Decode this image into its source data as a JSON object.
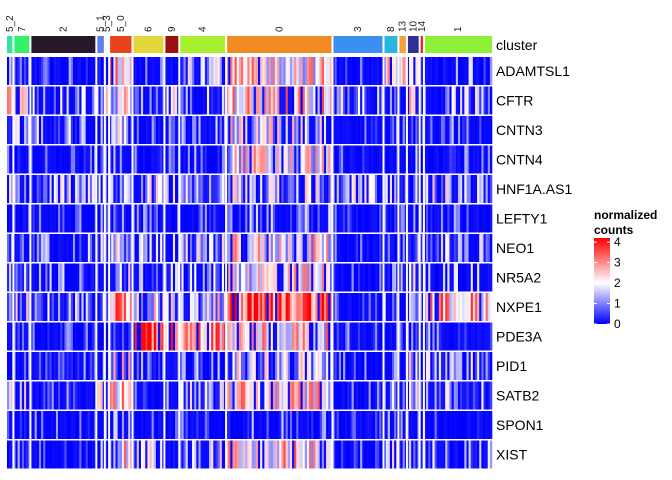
{
  "chart_data": {
    "type": "heatmap",
    "annotation_label": "cluster",
    "clusters": [
      {
        "name": "5_2",
        "color": "#2ee3a5",
        "cells": 3
      },
      {
        "name": "7",
        "color": "#34f06a",
        "cells": 8
      },
      {
        "name": "2",
        "color": "#27172a",
        "cells": 31
      },
      {
        "name": "5_1",
        "color": "#5b7ef5",
        "cells": 4
      },
      {
        "name": "5_3",
        "color": "#ffffff",
        "cells": 2
      },
      {
        "name": "5_0",
        "color": "#e8431c",
        "cells": 11
      },
      {
        "name": "6",
        "color": "#e3d63a",
        "cells": 15
      },
      {
        "name": "9",
        "color": "#9b0f12",
        "cells": 7
      },
      {
        "name": "4",
        "color": "#a8f02e",
        "cells": 22
      },
      {
        "name": "0",
        "color": "#f28a22",
        "cells": 50
      },
      {
        "name": "3",
        "color": "#3a8ff0",
        "cells": 24
      },
      {
        "name": "8",
        "color": "#29b6e0",
        "cells": 7
      },
      {
        "name": "13",
        "color": "#f2a23c",
        "cells": 4
      },
      {
        "name": "10",
        "color": "#2f2f95",
        "cells": 6
      },
      {
        "name": "14",
        "color": "#ef1f20",
        "cells": 2
      },
      {
        "name": "1",
        "color": "#8ff03a",
        "cells": 32
      }
    ],
    "genes": [
      "ADAMTSL1",
      "CFTR",
      "CNTN3",
      "CNTN4",
      "HNF1A.AS1",
      "LEFTY1",
      "NEO1",
      "NR5A2",
      "NXPE1",
      "PDE3A",
      "PID1",
      "SATB2",
      "SPON1",
      "XIST"
    ],
    "mean_expression": [
      [
        0.3,
        0.6,
        0.2,
        0.4,
        0.8,
        2.6,
        0.3,
        0.1,
        1.2,
        2.2,
        0.4,
        2.0,
        1.8,
        1.4,
        0.5,
        0.6
      ],
      [
        2.2,
        1.8,
        1.0,
        1.8,
        1.6,
        2.0,
        0.7,
        1.5,
        0.8,
        2.4,
        1.3,
        0.8,
        0.6,
        2.0,
        1.0,
        1.1
      ],
      [
        1.0,
        1.0,
        0.9,
        0.4,
        0.5,
        1.4,
        0.2,
        0.1,
        0.4,
        1.7,
        0.0,
        0.8,
        0.2,
        1.0,
        0.2,
        0.3
      ],
      [
        0.3,
        0.5,
        0.1,
        0.2,
        0.0,
        0.7,
        0.3,
        0.1,
        0.3,
        2.0,
        0.0,
        0.2,
        0.2,
        0.5,
        0.1,
        0.3
      ],
      [
        1.2,
        1.4,
        1.1,
        1.3,
        1.2,
        1.0,
        1.4,
        1.2,
        1.2,
        1.4,
        1.3,
        1.6,
        1.4,
        1.0,
        0.8,
        1.3
      ],
      [
        0.1,
        0.2,
        0.1,
        0.4,
        0.1,
        0.6,
        0.3,
        0.1,
        0.2,
        0.5,
        0.0,
        0.2,
        0.1,
        0.3,
        0.1,
        0.2
      ],
      [
        0.9,
        0.6,
        0.7,
        1.5,
        1.2,
        1.6,
        1.2,
        0.8,
        1.3,
        2.0,
        0.0,
        0.5,
        0.4,
        1.2,
        0.8,
        1.4
      ],
      [
        0.8,
        0.7,
        0.8,
        1.6,
        1.0,
        1.5,
        0.8,
        0.6,
        0.9,
        2.0,
        0.1,
        0.7,
        0.5,
        1.1,
        0.6,
        0.7
      ],
      [
        1.5,
        1.3,
        1.0,
        1.2,
        1.4,
        3.0,
        1.6,
        1.8,
        1.7,
        3.5,
        0.1,
        0.9,
        0.5,
        1.6,
        1.0,
        2.6
      ],
      [
        0.4,
        0.3,
        0.1,
        0.3,
        0.1,
        1.1,
        3.6,
        2.9,
        2.8,
        2.3,
        0.1,
        0.9,
        0.4,
        0.8,
        0.4,
        0.7
      ],
      [
        0.6,
        0.4,
        0.5,
        0.6,
        0.5,
        1.8,
        0.3,
        0.3,
        0.6,
        1.5,
        0.1,
        0.6,
        0.3,
        1.4,
        0.4,
        1.0
      ],
      [
        1.8,
        1.6,
        0.5,
        2.5,
        1.2,
        2.2,
        0.8,
        0.6,
        1.2,
        2.3,
        0.1,
        1.0,
        0.7,
        1.7,
        0.6,
        1.0
      ],
      [
        0.2,
        0.1,
        0.1,
        0.1,
        0.0,
        0.5,
        0.2,
        0.2,
        0.2,
        0.3,
        0.0,
        0.3,
        0.2,
        0.2,
        0.0,
        0.2
      ],
      [
        0.3,
        0.3,
        0.0,
        0.5,
        0.3,
        2.2,
        1.3,
        1.1,
        1.4,
        2.3,
        0.1,
        1.2,
        0.4,
        1.3,
        0.5,
        0.8
      ]
    ],
    "legend": {
      "title_line1": "normalized",
      "title_line2": "counts",
      "ticks": [
        0,
        1,
        2,
        3,
        4
      ],
      "range": [
        0,
        4.2
      ]
    },
    "color_scale": [
      "#0000ff",
      "#ffffff",
      "#ff0000"
    ]
  }
}
